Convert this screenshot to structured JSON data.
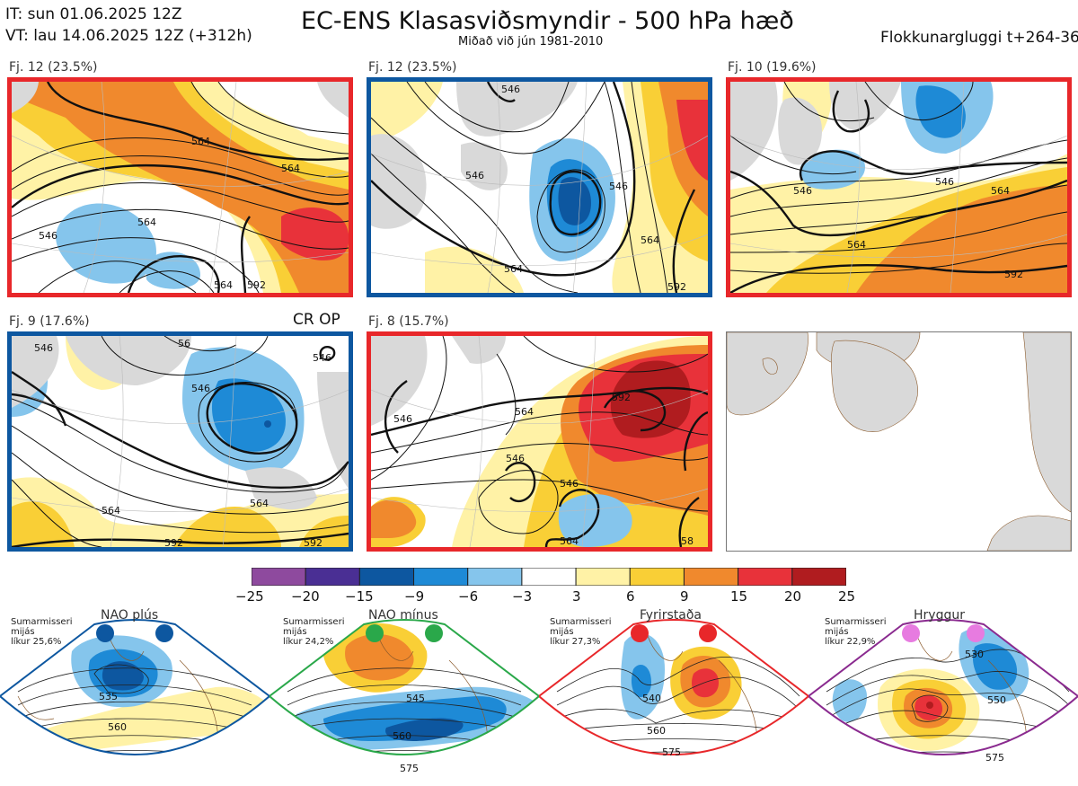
{
  "header": {
    "init_time": "IT: sun 01.06.2025 12Z",
    "valid_time": "VT: lau 14.06.2025 12Z  (+312h)",
    "title": "EC-ENS Klasasviðsmyndir - 500 hPa hæð",
    "subtitle": "Miðað við jún 1981-2010",
    "window": "Flokkunargluggi t+264-360"
  },
  "colors": {
    "red_border": "#e8272a",
    "blue_border": "#0d57a0",
    "green_border": "#2aa84a",
    "purple_border": "#8a2a8f",
    "land": "#d9d9d9",
    "coast": "#8b5a2b"
  },
  "clusters": [
    {
      "label": "Fj. 12 (23.5%)",
      "regime": "red",
      "contours": [
        "564",
        "564",
        "564",
        "546",
        "564",
        "592"
      ]
    },
    {
      "label": "Fj. 12 (23.5%)",
      "regime": "blue",
      "contours": [
        "546",
        "546",
        "564",
        "546",
        "564",
        "592"
      ]
    },
    {
      "label": "Fj. 10 (19.6%)",
      "regime": "red",
      "contours": [
        "546",
        "546",
        "564",
        "564",
        "592"
      ]
    },
    {
      "label": "Fj. 9 (17.6%)",
      "regime": "blue",
      "extra_label": "CR OP",
      "contours": [
        "546",
        "546",
        "546",
        "564",
        "564",
        "592",
        "592",
        "56"
      ]
    },
    {
      "label": "Fj. 8 (15.7%)",
      "regime": "red",
      "contours": [
        "546",
        "564",
        "592",
        "546",
        "546",
        "564",
        "58"
      ]
    }
  ],
  "colorbar": {
    "ticks": [
      "−25",
      "−20",
      "−15",
      "−9",
      "−6",
      "−3",
      "3",
      "6",
      "9",
      "15",
      "20",
      "25"
    ],
    "colors": [
      "#8e4a9e",
      "#4a2f94",
      "#0d57a0",
      "#1e8ad6",
      "#85c5ec",
      "#ffffff",
      "#fff2a6",
      "#f9cf36",
      "#f0892d",
      "#e8323a",
      "#b01c1f"
    ]
  },
  "regimes": [
    {
      "name": "NAO plús",
      "desc": [
        "Sumarmisseri",
        "mijás",
        "líkur 25,6%"
      ],
      "color": "#0d57a0",
      "contours": [
        "535",
        "560"
      ]
    },
    {
      "name": "NAO mínus",
      "desc": [
        "Sumarmisseri",
        "mijás",
        "líkur 24,2%"
      ],
      "color": "#2aa84a",
      "contours": [
        "545",
        "560",
        "575"
      ]
    },
    {
      "name": "Fyrirstaða",
      "desc": [
        "Sumarmisseri",
        "mijás",
        "líkur 27,3%"
      ],
      "color": "#e8272a",
      "contours": [
        "540",
        "560",
        "575"
      ]
    },
    {
      "name": "Hryggur",
      "desc": [
        "Sumarmisseri",
        "mijás",
        "líkur 22,9%"
      ],
      "color": "#8a2a8f",
      "contours": [
        "530",
        "550",
        "575"
      ]
    }
  ]
}
